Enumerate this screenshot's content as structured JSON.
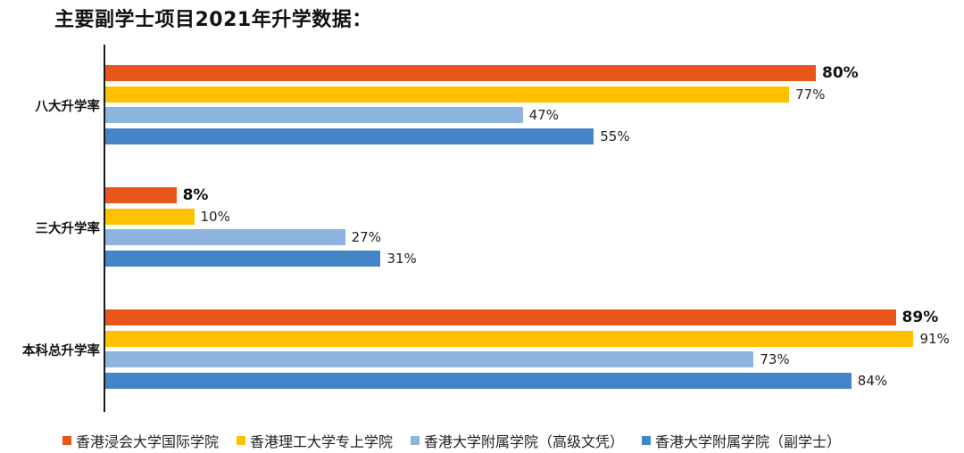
{
  "title": "主要副学士项目2021年升学数据：",
  "chart_data": {
    "type": "bar",
    "orientation": "horizontal",
    "title": "主要副学士项目2021年升学数据：",
    "xlabel": "",
    "ylabel": "",
    "categories": [
      "八大升学率",
      "三大升学率",
      "本科总升学率"
    ],
    "series": [
      {
        "name": "香港浸会大学国际学院",
        "color": "#E8561C",
        "values": [
          80,
          8,
          89
        ],
        "labels": [
          "80%",
          "8%",
          "89%"
        ],
        "bold_labels": true
      },
      {
        "name": "香港理工大学专上学院",
        "color": "#FFC000",
        "values": [
          77,
          10,
          91
        ],
        "labels": [
          "77%",
          "10%",
          "91%"
        ],
        "bold_labels": false
      },
      {
        "name": "香港大学附属学院（高级文凭）",
        "color": "#8DB4DE",
        "values": [
          47,
          27,
          73
        ],
        "labels": [
          "47%",
          "27%",
          "73%"
        ],
        "bold_labels": false
      },
      {
        "name": "香港大学附属学院（副学士）",
        "color": "#4485C8",
        "values": [
          55,
          31,
          84
        ],
        "labels": [
          "55%",
          "31%",
          "84%"
        ],
        "bold_labels": false
      }
    ],
    "grid": false,
    "legend_position": "bottom",
    "xlim": [
      0,
      100
    ]
  }
}
